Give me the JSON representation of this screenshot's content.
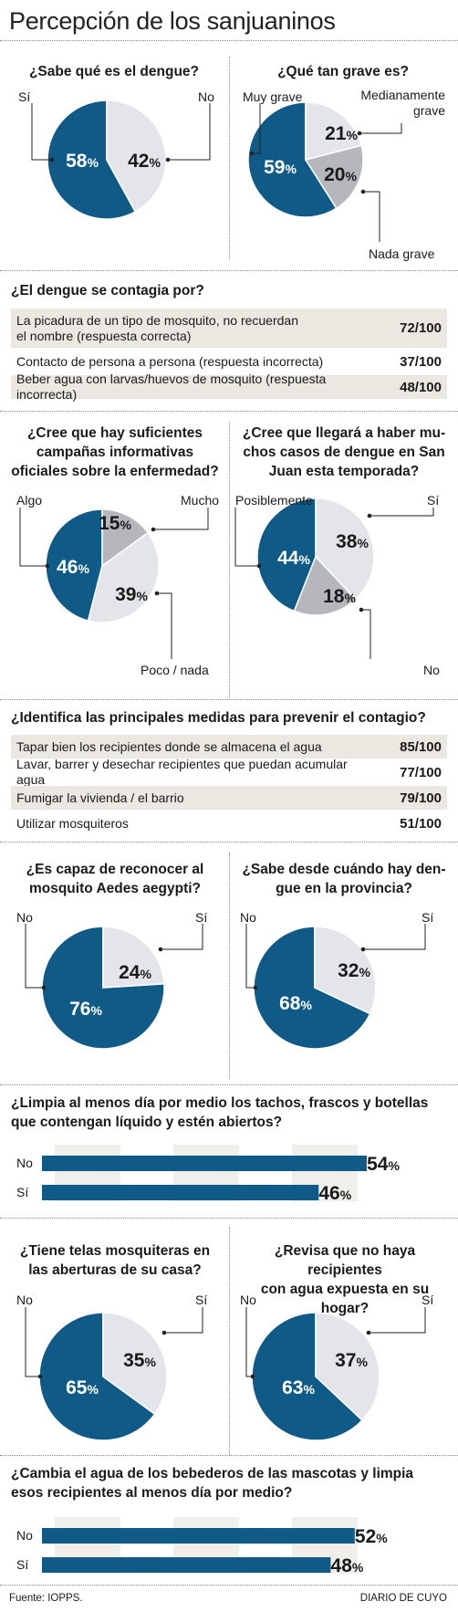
{
  "page": {
    "title": "Percepción de los sanjuaninos",
    "source": "Fuente: IOPPS.",
    "publisher": "DIARIO DE CUYO"
  },
  "colors": {
    "blue": "#0f5a87",
    "light": "#e4e5e9",
    "gray": "#b6b7bc",
    "row_shade": "#ebe8e2"
  },
  "pies": {
    "dengue": {
      "question": "¿Sabe qué es el dengue?",
      "labels": [
        "Sí",
        "No"
      ]
    },
    "grave": {
      "question": "¿Qué tan grave es?",
      "labels": [
        "Muy grave",
        "Medianamente grave",
        "Nada grave"
      ]
    },
    "campanas": {
      "question_l1": "¿Cree que hay suficientes",
      "question_l2": "campañas informativas",
      "question_l3": "oficiales sobre la enfermedad?",
      "labels": [
        "Algo",
        "Mucho",
        "Poco / nada"
      ]
    },
    "casos": {
      "question_l1": "¿Cree que llegará a haber mu-",
      "question_l2": "chos casos de dengue en San",
      "question_l3": "Juan esta temporada?",
      "labels": [
        "Posiblemente",
        "Sí",
        "No"
      ]
    },
    "aedes": {
      "question_l1": "¿Es capaz de reconocer al",
      "question_l2": "mosquito Aedes aegypti?",
      "labels": [
        "No",
        "Sí"
      ]
    },
    "desde": {
      "question_l1": "¿Sabe desde cuándo hay den-",
      "question_l2": "gue en la provincia?",
      "labels": [
        "No",
        "Sí"
      ]
    },
    "telas": {
      "question_l1": "¿Tiene telas mosquiteras en",
      "question_l2": "las aberturas de su casa?",
      "labels": [
        "No",
        "Sí"
      ]
    },
    "revisa": {
      "question_l1": "¿Revisa que no haya recipientes",
      "question_l2": "con agua expuesta en su hogar?",
      "labels": [
        "No",
        "Sí"
      ]
    }
  },
  "contagio": {
    "question": "¿El dengue se contagia por?",
    "rows": [
      {
        "text_l1": "La picadura de un tipo de mosquito, no recuerdan",
        "text_l2": "el nombre (respuesta correcta)",
        "value": "72/100"
      },
      {
        "text_l1": "Contacto de persona a persona (respuesta incorrecta)",
        "text_l2": "",
        "value": "37/100"
      },
      {
        "text_l1": "Beber agua con larvas/huevos de mosquito (respuesta incorrecta)",
        "text_l2": "",
        "value": "48/100"
      }
    ]
  },
  "medidas": {
    "question": "¿Identifica las principales medidas para prevenir el contagio?",
    "rows": [
      {
        "text": "Tapar bien los recipientes donde se almacena el agua",
        "value": "85/100"
      },
      {
        "text": "Lavar, barrer y desechar recipientes que puedan acumular agua",
        "value": "77/100"
      },
      {
        "text": "Fumigar la vivienda / el barrio",
        "value": "79/100"
      },
      {
        "text": "Utilizar mosquiteros",
        "value": "51/100"
      }
    ]
  },
  "bars": {
    "limpia": {
      "question_l1": "¿Limpia al menos día por medio los tachos, frascos y botellas",
      "question_l2": "que contengan líquido y estén abiertos?"
    },
    "cambia": {
      "question_l1": "¿Cambia el agua de los bebederos de las mascotas y limpia",
      "question_l2": "esos recipientes al menos día por medio?"
    }
  },
  "chart_data": [
    {
      "type": "pie",
      "title": "¿Sabe qué es el dengue?",
      "series": [
        {
          "name": "Sí",
          "value": 58
        },
        {
          "name": "No",
          "value": 42
        }
      ],
      "unit": "%"
    },
    {
      "type": "pie",
      "title": "¿Qué tan grave es?",
      "series": [
        {
          "name": "Muy grave",
          "value": 59
        },
        {
          "name": "Medianamente grave",
          "value": 21
        },
        {
          "name": "Nada grave",
          "value": 20
        }
      ],
      "unit": "%"
    },
    {
      "type": "pie",
      "title": "¿Cree que hay suficientes campañas informativas oficiales sobre la enfermedad?",
      "series": [
        {
          "name": "Algo",
          "value": 46
        },
        {
          "name": "Mucho",
          "value": 15
        },
        {
          "name": "Poco / nada",
          "value": 39
        }
      ],
      "unit": "%"
    },
    {
      "type": "pie",
      "title": "¿Cree que llegará a haber muchos casos de dengue en San Juan esta temporada?",
      "series": [
        {
          "name": "Posiblemente",
          "value": 44
        },
        {
          "name": "Sí",
          "value": 38
        },
        {
          "name": "No",
          "value": 18
        }
      ],
      "unit": "%"
    },
    {
      "type": "pie",
      "title": "¿Es capaz de reconocer al mosquito Aedes aegypti?",
      "series": [
        {
          "name": "No",
          "value": 76
        },
        {
          "name": "Sí",
          "value": 24
        }
      ],
      "unit": "%"
    },
    {
      "type": "pie",
      "title": "¿Sabe desde cuándo hay dengue en la provincia?",
      "series": [
        {
          "name": "No",
          "value": 68
        },
        {
          "name": "Sí",
          "value": 32
        }
      ],
      "unit": "%"
    },
    {
      "type": "bar",
      "title": "¿Limpia al menos día por medio los tachos, frascos y botellas que contengan líquido y estén abiertos?",
      "categories": [
        "No",
        "Sí"
      ],
      "values": [
        54,
        46
      ],
      "unit": "%"
    },
    {
      "type": "pie",
      "title": "¿Tiene telas mosquiteras en las aberturas de su casa?",
      "series": [
        {
          "name": "No",
          "value": 65
        },
        {
          "name": "Sí",
          "value": 35
        }
      ],
      "unit": "%"
    },
    {
      "type": "pie",
      "title": "¿Revisa que no haya recipientes con agua expuesta en su hogar?",
      "series": [
        {
          "name": "No",
          "value": 63
        },
        {
          "name": "Sí",
          "value": 37
        }
      ],
      "unit": "%"
    },
    {
      "type": "bar",
      "title": "¿Cambia el agua de los bebederos de las mascotas y limpia esos recipientes al menos día por medio?",
      "categories": [
        "No",
        "Sí"
      ],
      "values": [
        52,
        48
      ],
      "unit": "%"
    }
  ]
}
